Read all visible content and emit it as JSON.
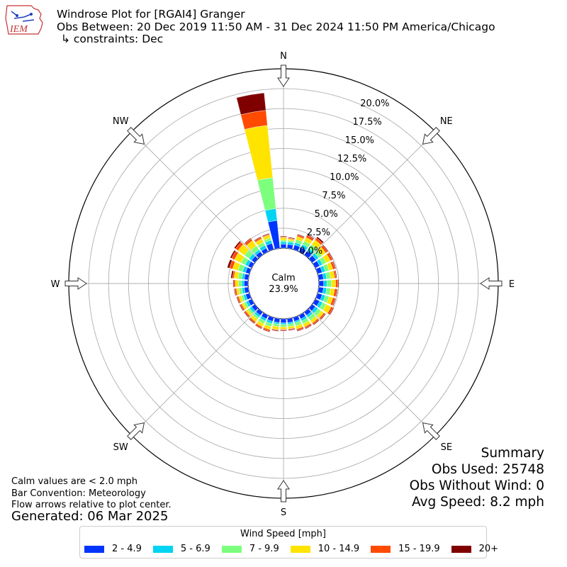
{
  "header": {
    "logo_text": "IEM",
    "title_line1": "Windrose Plot for [RGAI4] Granger",
    "title_line2": "Obs Between: 20 Dec 2019 11:50 AM - 31 Dec 2024 11:50 PM America/Chicago",
    "title_line3": "↳ constraints: Dec"
  },
  "notes": {
    "calm_note": "Calm values are < 2.0 mph",
    "bar_convention": "Bar Convention: Meteorology",
    "flow_note": "Flow arrows relative to plot center.",
    "generated": "Generated: 06 Mar 2025"
  },
  "summary": {
    "title": "Summary",
    "obs_used": "Obs Used: 25748",
    "obs_without_wind": "Obs Without Wind: 0",
    "avg_speed": "Avg Speed: 8.2 mph"
  },
  "legend": {
    "title": "Wind Speed [mph]",
    "items": [
      {
        "label": "2 - 4.9",
        "color": "#0034ff"
      },
      {
        "label": "5 - 6.9",
        "color": "#00d4f2"
      },
      {
        "label": "7 - 9.9",
        "color": "#7cff7c"
      },
      {
        "label": "10 - 14.9",
        "color": "#ffe400"
      },
      {
        "label": "15 - 19.9",
        "color": "#ff4a00"
      },
      {
        "label": "20+",
        "color": "#800000"
      }
    ]
  },
  "chart_data": {
    "type": "windrose",
    "calm_label": "Calm",
    "calm_value": "23.9%",
    "radial_tick_labels": [
      "0.0%",
      "2.5%",
      "5.0%",
      "7.5%",
      "10.0%",
      "12.5%",
      "15.0%",
      "17.5%",
      "20.0%"
    ],
    "radial_ticks": [
      0,
      2.5,
      5,
      7.5,
      10,
      12.5,
      15,
      17.5,
      20
    ],
    "rmax": 22.5,
    "compass_labels": [
      "N",
      "NE",
      "E",
      "SE",
      "S",
      "SW",
      "W",
      "NW"
    ],
    "speed_bins": [
      "2 - 4.9",
      "5 - 6.9",
      "7 - 9.9",
      "10 - 14.9",
      "15 - 19.9",
      "20+"
    ],
    "colors": [
      "#0034ff",
      "#00d4f2",
      "#7cff7c",
      "#ffe400",
      "#ff4a00",
      "#800000"
    ],
    "directions": [
      0,
      10,
      20,
      30,
      40,
      50,
      60,
      70,
      80,
      90,
      100,
      110,
      120,
      130,
      140,
      150,
      160,
      170,
      180,
      190,
      200,
      210,
      220,
      230,
      240,
      250,
      260,
      270,
      280,
      290,
      300,
      310,
      320,
      330,
      340,
      350
    ],
    "cumulative": [
      [
        0.5,
        0.8,
        1.0,
        1.3,
        1.4,
        1.5
      ],
      [
        0.5,
        0.8,
        1.0,
        1.2,
        1.3,
        1.4
      ],
      [
        0.6,
        0.9,
        1.3,
        1.7,
        1.9,
        2.0
      ],
      [
        0.6,
        1.0,
        1.5,
        2.0,
        2.3,
        2.4
      ],
      [
        0.6,
        1.0,
        1.6,
        2.3,
        2.6,
        2.8
      ],
      [
        0.6,
        1.0,
        1.5,
        2.1,
        2.4,
        2.5
      ],
      [
        0.6,
        1.0,
        1.5,
        2.1,
        2.4,
        2.5
      ],
      [
        0.6,
        1.0,
        1.5,
        2.0,
        2.3,
        2.4
      ],
      [
        0.6,
        1.0,
        1.5,
        2.0,
        2.2,
        2.3
      ],
      [
        0.6,
        1.0,
        1.6,
        2.1,
        2.4,
        2.5
      ],
      [
        0.6,
        1.0,
        1.5,
        2.0,
        2.3,
        2.4
      ],
      [
        0.6,
        1.0,
        1.5,
        2.0,
        2.3,
        2.4
      ],
      [
        0.6,
        1.0,
        1.5,
        2.2,
        2.5,
        2.6
      ],
      [
        0.5,
        0.9,
        1.4,
        1.8,
        2.0,
        2.1
      ],
      [
        0.5,
        0.8,
        1.3,
        1.7,
        1.9,
        2.0
      ],
      [
        0.5,
        0.8,
        1.2,
        1.6,
        1.8,
        1.9
      ],
      [
        0.5,
        0.7,
        1.1,
        1.5,
        1.7,
        1.8
      ],
      [
        0.5,
        0.7,
        1.0,
        1.3,
        1.4,
        1.5
      ],
      [
        0.5,
        0.7,
        1.0,
        1.3,
        1.4,
        1.5
      ],
      [
        0.5,
        0.7,
        1.0,
        1.4,
        1.5,
        1.6
      ],
      [
        0.5,
        0.8,
        1.2,
        1.6,
        1.8,
        1.9
      ],
      [
        0.5,
        0.8,
        1.2,
        1.6,
        1.8,
        1.9
      ],
      [
        0.5,
        0.8,
        1.1,
        1.5,
        1.7,
        1.8
      ],
      [
        0.5,
        0.8,
        1.1,
        1.4,
        1.6,
        1.7
      ],
      [
        0.5,
        0.8,
        1.1,
        1.4,
        1.6,
        1.7
      ],
      [
        0.5,
        0.8,
        1.1,
        1.4,
        1.6,
        1.7
      ],
      [
        0.5,
        0.8,
        1.2,
        1.5,
        1.7,
        1.8
      ],
      [
        0.5,
        0.8,
        1.2,
        1.6,
        1.8,
        1.9
      ],
      [
        0.5,
        0.8,
        1.3,
        1.8,
        2.0,
        2.2
      ],
      [
        0.5,
        0.9,
        1.5,
        2.2,
        2.6,
        2.9
      ],
      [
        0.5,
        0.9,
        1.5,
        2.4,
        2.8,
        3.0
      ],
      [
        0.5,
        0.9,
        1.6,
        2.6,
        3.0,
        3.2
      ],
      [
        0.5,
        0.8,
        1.4,
        2.2,
        2.5,
        2.6
      ],
      [
        0.5,
        0.9,
        1.3,
        1.8,
        2.0,
        2.1
      ],
      [
        0.8,
        1.2,
        1.5,
        1.9,
        2.0,
        2.1
      ],
      [
        3.5,
        5.0,
        8.9,
        15.5,
        17.4,
        19.6
      ]
    ]
  }
}
